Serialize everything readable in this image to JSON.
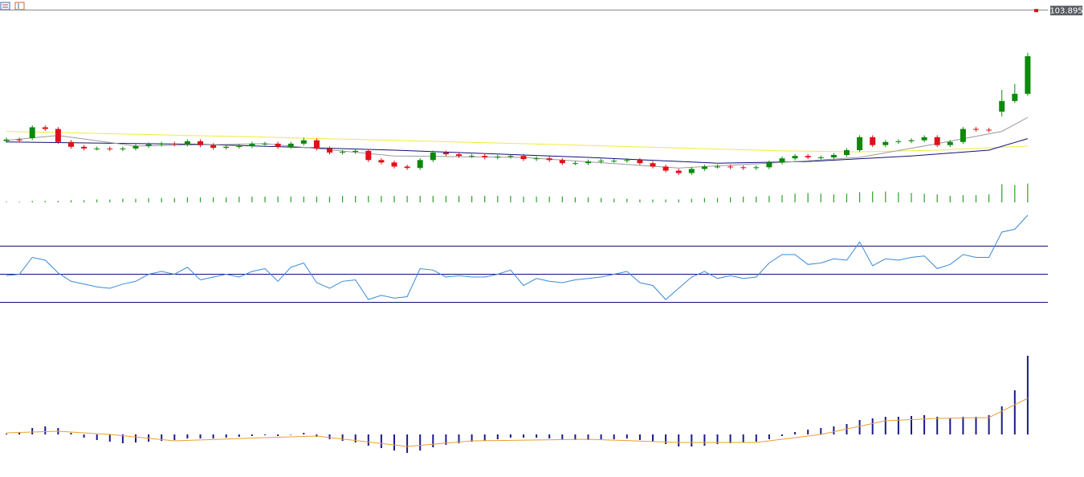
{
  "chart_data": [
    {
      "type": "candlestick",
      "open": [
        98.48,
        98.54,
        98.6,
        99.05,
        98.98,
        98.44,
        98.24,
        98.17,
        98.17,
        98.14,
        98.17,
        98.27,
        98.34,
        98.37,
        98.34,
        98.47,
        98.31,
        98.2,
        98.24,
        98.27,
        98.37,
        98.37,
        98.24,
        98.37,
        98.51,
        98.17,
        98.0,
        98.03,
        98.07,
        97.69,
        97.59,
        97.42,
        97.36,
        97.69,
        98.0,
        97.93,
        97.86,
        97.86,
        97.8,
        97.83,
        97.86,
        97.73,
        97.76,
        97.69,
        97.56,
        97.56,
        97.63,
        97.66,
        97.66,
        97.69,
        97.56,
        97.42,
        97.25,
        97.15,
        97.32,
        97.42,
        97.42,
        97.39,
        97.36,
        97.39,
        97.59,
        97.76,
        97.86,
        97.8,
        97.8,
        97.9,
        98.1,
        98.64,
        98.31,
        98.44,
        98.47,
        98.51,
        98.64,
        98.31,
        98.44,
        98.98,
        98.95,
        99.7,
        100.14,
        100.44
      ],
      "high": [
        98.62,
        98.62,
        99.13,
        99.13,
        99.06,
        98.52,
        98.32,
        98.25,
        98.25,
        98.25,
        98.35,
        98.42,
        98.45,
        98.45,
        98.55,
        98.55,
        98.39,
        98.32,
        98.35,
        98.45,
        98.45,
        98.45,
        98.45,
        98.62,
        98.59,
        98.25,
        98.11,
        98.15,
        98.15,
        97.77,
        97.67,
        97.5,
        97.77,
        98.08,
        98.08,
        98.01,
        97.94,
        97.94,
        97.91,
        97.94,
        97.94,
        97.84,
        97.84,
        97.77,
        97.64,
        97.71,
        97.74,
        97.74,
        97.77,
        97.77,
        97.64,
        97.5,
        97.33,
        97.4,
        97.5,
        97.5,
        97.5,
        97.47,
        97.47,
        97.67,
        97.84,
        97.94,
        97.94,
        97.88,
        97.98,
        98.18,
        98.72,
        98.72,
        98.52,
        98.55,
        98.59,
        98.72,
        98.72,
        98.52,
        99.06,
        99.06,
        99.03,
        100.6,
        100.85,
        102.14
      ],
      "low": [
        98.4,
        98.43,
        98.52,
        98.9,
        98.36,
        98.16,
        98.09,
        98.09,
        98.06,
        98.06,
        98.09,
        98.19,
        98.26,
        98.26,
        98.26,
        98.23,
        98.12,
        98.12,
        98.16,
        98.19,
        98.29,
        98.16,
        98.16,
        98.29,
        98.09,
        97.92,
        97.92,
        97.95,
        97.61,
        97.51,
        97.34,
        97.28,
        97.28,
        97.61,
        97.85,
        97.78,
        97.78,
        97.72,
        97.72,
        97.75,
        97.65,
        97.65,
        97.61,
        97.48,
        97.48,
        97.48,
        97.55,
        97.58,
        97.58,
        97.48,
        97.34,
        97.17,
        97.07,
        97.07,
        97.24,
        97.34,
        97.31,
        97.28,
        97.28,
        97.31,
        97.51,
        97.68,
        97.72,
        97.72,
        97.72,
        97.82,
        98.02,
        98.23,
        98.23,
        98.36,
        98.39,
        98.43,
        98.23,
        98.23,
        98.36,
        98.87,
        98.84,
        99.5,
        100.06,
        100.36
      ],
      "close": [
        98.54,
        98.51,
        99.05,
        98.98,
        98.44,
        98.24,
        98.17,
        98.17,
        98.14,
        98.17,
        98.27,
        98.34,
        98.37,
        98.34,
        98.47,
        98.31,
        98.2,
        98.24,
        98.27,
        98.37,
        98.37,
        98.24,
        98.37,
        98.51,
        98.17,
        98.0,
        98.03,
        98.07,
        97.69,
        97.59,
        97.42,
        97.36,
        97.69,
        98.0,
        97.93,
        97.86,
        97.86,
        97.8,
        97.83,
        97.86,
        97.73,
        97.76,
        97.69,
        97.56,
        97.56,
        97.63,
        97.66,
        97.66,
        97.69,
        97.56,
        97.42,
        97.25,
        97.15,
        97.32,
        97.42,
        97.42,
        97.39,
        97.36,
        97.39,
        97.59,
        97.76,
        97.86,
        97.8,
        97.8,
        97.9,
        98.1,
        98.64,
        98.31,
        98.44,
        98.47,
        98.51,
        98.64,
        98.31,
        98.44,
        98.98,
        98.95,
        98.92,
        100.14,
        100.44,
        102.0
      ],
      "up_color": "#0b8a0b",
      "down_color": "#e0101a",
      "overlays": [
        {
          "color": "#f2ea3c",
          "x": [
            0,
            20,
            40,
            60,
            66,
            72,
            79
          ],
          "values": [
            98.88,
            98.64,
            98.37,
            98.07,
            98.03,
            98.1,
            98.27
          ]
        },
        {
          "color": "#10107a",
          "x": [
            0,
            15,
            30,
            45,
            55,
            62,
            70,
            76,
            79
          ],
          "values": [
            98.44,
            98.34,
            98.1,
            97.8,
            97.56,
            97.63,
            97.86,
            98.1,
            98.58
          ]
        },
        {
          "color": "#9a9a9a",
          "x": [
            0,
            4,
            10,
            20,
            30,
            40,
            52,
            60,
            66,
            72,
            77,
            79
          ],
          "values": [
            98.51,
            98.71,
            98.27,
            98.37,
            97.86,
            97.8,
            97.36,
            97.59,
            97.8,
            98.37,
            98.88,
            99.46
          ]
        }
      ],
      "last_price": 103.895,
      "last_price_color": "#e0101a",
      "ylim": [
        96,
        104
      ]
    },
    {
      "type": "bar",
      "color": "#2ca02c",
      "ylim": [
        0,
        30
      ],
      "values": [
        1,
        1,
        2,
        2,
        2,
        3,
        3,
        4,
        4,
        5,
        5,
        6,
        6,
        6,
        7,
        7,
        7,
        7,
        8,
        8,
        8,
        8,
        8,
        8,
        8,
        8,
        9,
        9,
        9,
        9,
        9,
        9,
        9,
        9,
        9,
        9,
        9,
        9,
        9,
        9,
        8,
        8,
        8,
        8,
        7,
        7,
        6,
        5,
        5,
        4,
        4,
        4,
        4,
        5,
        6,
        6,
        7,
        8,
        8,
        9,
        10,
        12,
        13,
        12,
        11,
        12,
        14,
        15,
        15,
        14,
        13,
        12,
        11,
        9,
        10,
        10,
        11,
        25,
        24,
        26
      ]
    },
    {
      "type": "line",
      "color": "#3a8ad8",
      "ylim": [
        0,
        100
      ],
      "levels": [
        30,
        50,
        70
      ],
      "level_color": "#10107a",
      "values": [
        49,
        50,
        62,
        60,
        51,
        45,
        43,
        41,
        40,
        43,
        45,
        50,
        52,
        50,
        55,
        46,
        48,
        50,
        48,
        52,
        54,
        45,
        55,
        58,
        44,
        40,
        45,
        46,
        32,
        35,
        33,
        34,
        54,
        53,
        48,
        49,
        48,
        48,
        50,
        53,
        42,
        47,
        45,
        44,
        46,
        47,
        48,
        50,
        52,
        44,
        42,
        32,
        40,
        48,
        52,
        47,
        49,
        47,
        48,
        58,
        64,
        64,
        57,
        58,
        61,
        60,
        73,
        56,
        61,
        60,
        62,
        63,
        54,
        57,
        64,
        62,
        62,
        80,
        82,
        92
      ]
    },
    {
      "type": "bar",
      "color": "#1a1a8a",
      "ylim": [
        -0.29,
        1.21
      ],
      "values": [
        0.01,
        0.03,
        0.08,
        0.1,
        0.08,
        0.02,
        -0.04,
        -0.07,
        -0.09,
        -0.11,
        -0.1,
        -0.09,
        -0.08,
        -0.07,
        -0.05,
        -0.05,
        -0.05,
        -0.04,
        -0.03,
        -0.02,
        -0.01,
        -0.02,
        0.0,
        0.02,
        -0.03,
        -0.06,
        -0.08,
        -0.1,
        -0.14,
        -0.17,
        -0.2,
        -0.23,
        -0.2,
        -0.16,
        -0.13,
        -0.11,
        -0.09,
        -0.08,
        -0.06,
        -0.04,
        -0.04,
        -0.04,
        -0.05,
        -0.06,
        -0.07,
        -0.07,
        -0.06,
        -0.06,
        -0.05,
        -0.07,
        -0.09,
        -0.12,
        -0.15,
        -0.15,
        -0.14,
        -0.12,
        -0.11,
        -0.1,
        -0.09,
        -0.06,
        -0.02,
        0.03,
        0.06,
        0.08,
        0.1,
        0.13,
        0.18,
        0.2,
        0.22,
        0.22,
        0.23,
        0.24,
        0.22,
        0.2,
        0.22,
        0.22,
        0.24,
        0.35,
        0.55,
        0.98
      ],
      "signal": {
        "color": "#e8a030",
        "x": [
          0,
          4,
          8,
          13,
          20,
          24,
          31,
          36,
          45,
          52,
          58,
          63,
          68,
          72,
          76,
          79
        ],
        "values": [
          0.02,
          0.04,
          0.0,
          -0.08,
          -0.04,
          -0.02,
          -0.15,
          -0.08,
          -0.06,
          -0.1,
          -0.1,
          0.0,
          0.17,
          0.2,
          0.21,
          0.45
        ]
      }
    }
  ]
}
